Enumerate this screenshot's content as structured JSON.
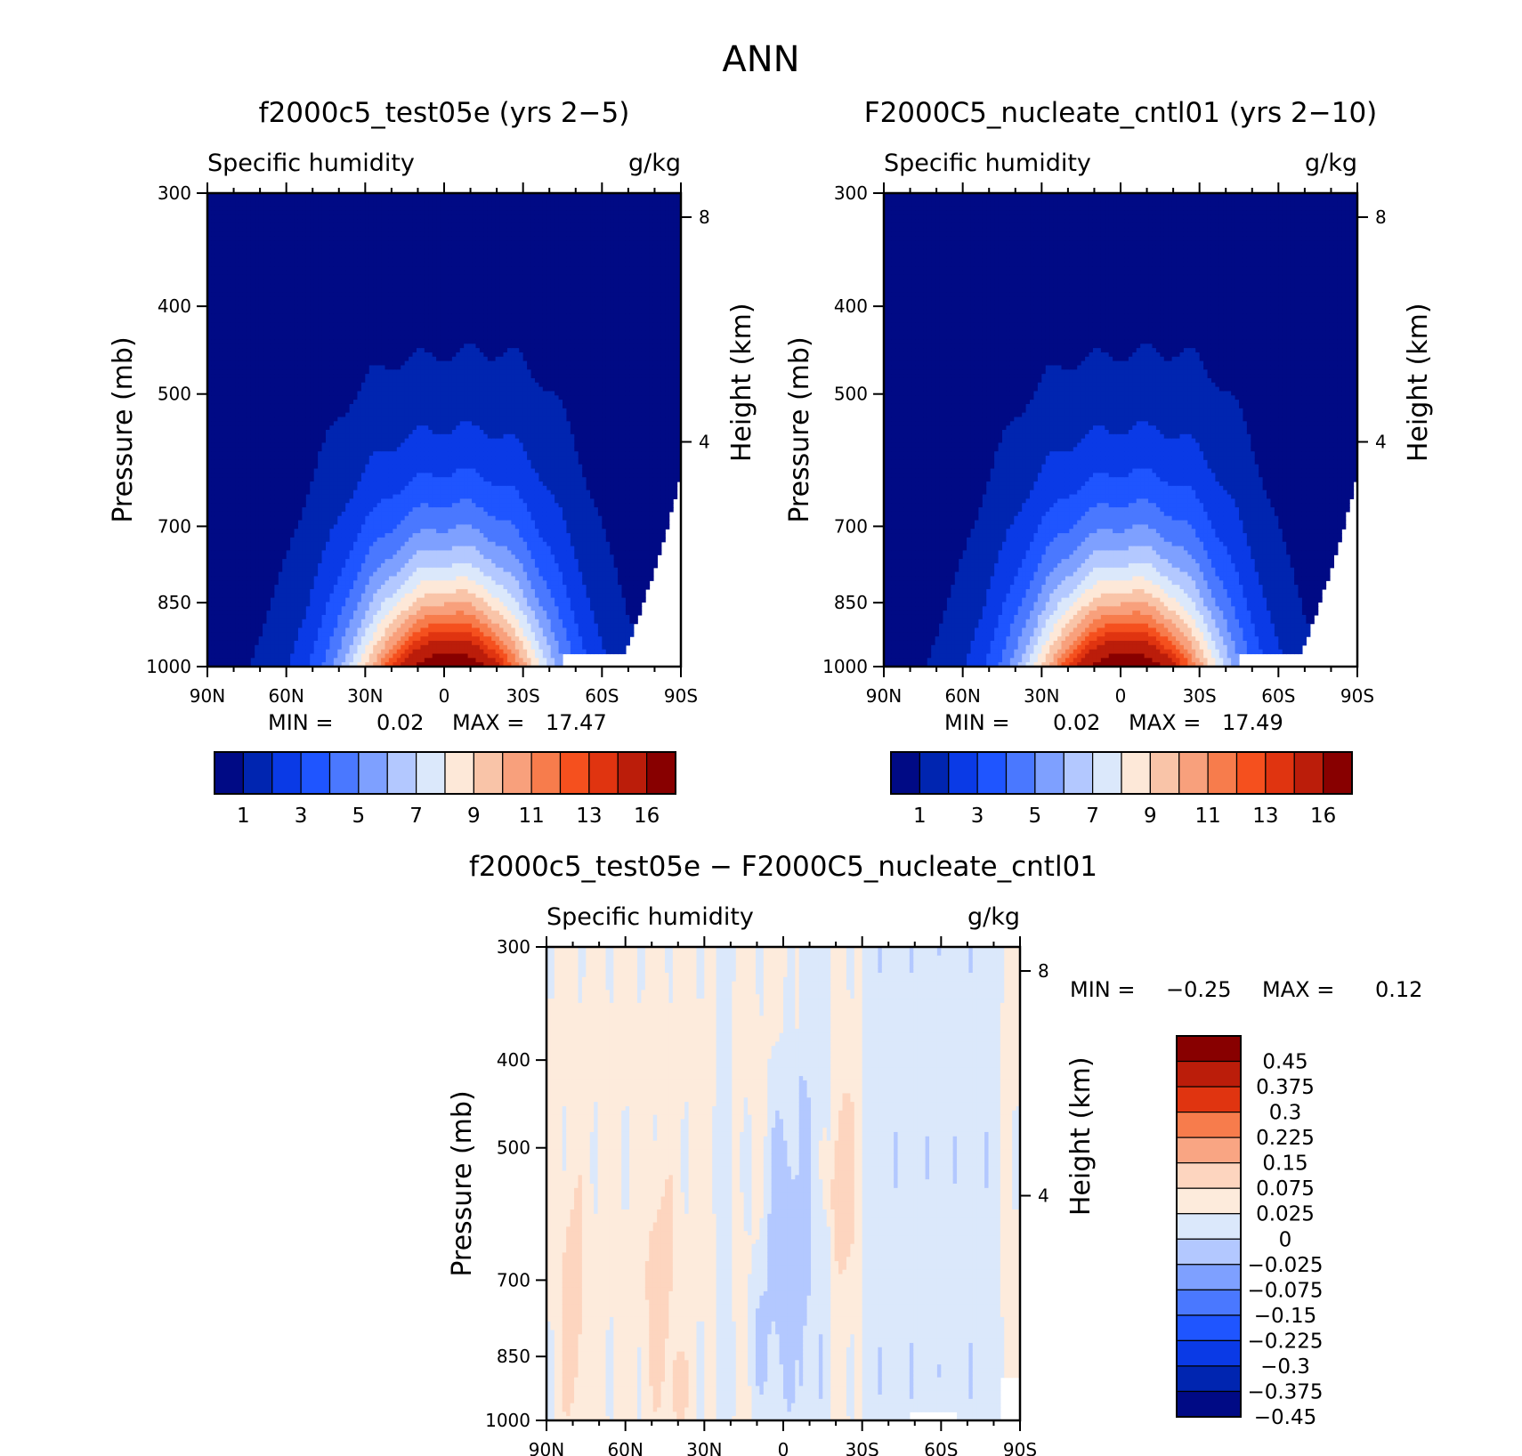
{
  "page_title": "ANN",
  "palettes": {
    "full": [
      "#000a85",
      "#0025b0",
      "#0a3ae6",
      "#1f55ff",
      "#4a78ff",
      "#7ea0ff",
      "#b3c8ff",
      "#dbe8fb",
      "#fde8d8",
      "#f9c4a8",
      "#f8a07c",
      "#f77c4c",
      "#f5501e",
      "#e03410",
      "#bb1d0a",
      "#880000"
    ],
    "diff": [
      "#880000",
      "#bb1d0a",
      "#e03410",
      "#f77c4c",
      "#f9a583",
      "#fdd5bf",
      "#fdebdc",
      "#dbe8fb",
      "#b3c8ff",
      "#7ea0ff",
      "#4a78ff",
      "#1f55ff",
      "#0a3ae6",
      "#0025b0",
      "#000a85"
    ]
  },
  "chart_data": [
    {
      "id": "panel-a",
      "type": "heatmap",
      "title": "f2000c5_test05e (yrs 2-5)",
      "title_display": "f2000c5_test05e (yrs 2−5)",
      "variable": "Specific humidity",
      "units": "g/kg",
      "ylabel": "Pressure (mb)",
      "y2label": "Height (km)",
      "x_ticks": [
        "90N",
        "60N",
        "30N",
        "0",
        "30S",
        "60S",
        "90S"
      ],
      "y_ticks": [
        "300",
        "400",
        "500",
        "700",
        "850",
        "1000"
      ],
      "y2_ticks": [
        "8",
        "4"
      ],
      "ylim": [
        1000,
        300
      ],
      "xlim": [
        90,
        -90
      ],
      "min_label": "MIN =",
      "min_value": "0.02",
      "max_label": "MAX =",
      "max_value": "17.47",
      "colorbar_labels": [
        "1",
        "3",
        "5",
        "7",
        "9",
        "11",
        "13",
        "16"
      ],
      "max_at_surface": 17.47
    },
    {
      "id": "panel-b",
      "type": "heatmap",
      "title": "F2000C5_nucleate_cntl01 (yrs 2-10)",
      "title_display": "F2000C5_nucleate_cntl01 (yrs 2−10)",
      "variable": "Specific humidity",
      "units": "g/kg",
      "ylabel": "Pressure (mb)",
      "y2label": "Height (km)",
      "x_ticks": [
        "90N",
        "60N",
        "30N",
        "0",
        "30S",
        "60S",
        "90S"
      ],
      "y_ticks": [
        "300",
        "400",
        "500",
        "700",
        "850",
        "1000"
      ],
      "y2_ticks": [
        "8",
        "4"
      ],
      "ylim": [
        1000,
        300
      ],
      "xlim": [
        90,
        -90
      ],
      "min_label": "MIN =",
      "min_value": "0.02",
      "max_label": "MAX =",
      "max_value": "17.49",
      "colorbar_labels": [
        "1",
        "3",
        "5",
        "7",
        "9",
        "11",
        "13",
        "16"
      ],
      "max_at_surface": 17.49
    },
    {
      "id": "panel-c",
      "type": "heatmap",
      "title": "f2000c5_test05e - F2000C5_nucleate_cntl01",
      "title_display": "f2000c5_test05e − F2000C5_nucleate_cntl01",
      "variable": "Specific humidity",
      "units": "g/kg",
      "ylabel": "Pressure (mb)",
      "y2label": "Height (km)",
      "x_ticks": [
        "90N",
        "60N",
        "30N",
        "0",
        "30S",
        "60S",
        "90S"
      ],
      "y_ticks": [
        "300",
        "400",
        "500",
        "700",
        "850",
        "1000"
      ],
      "y2_ticks": [
        "8",
        "4"
      ],
      "ylim": [
        1000,
        300
      ],
      "xlim": [
        90,
        -90
      ],
      "min_label": "MIN =",
      "min_value": "−0.25",
      "max_label": "MAX =",
      "max_value": "0.12",
      "colorbar_labels": [
        "0.45",
        "0.375",
        "0.3",
        "0.225",
        "0.15",
        "0.075",
        "0.025",
        "0",
        "−0.025",
        "−0.075",
        "−0.15",
        "−0.225",
        "−0.3",
        "−0.375",
        "−0.45"
      ]
    }
  ]
}
